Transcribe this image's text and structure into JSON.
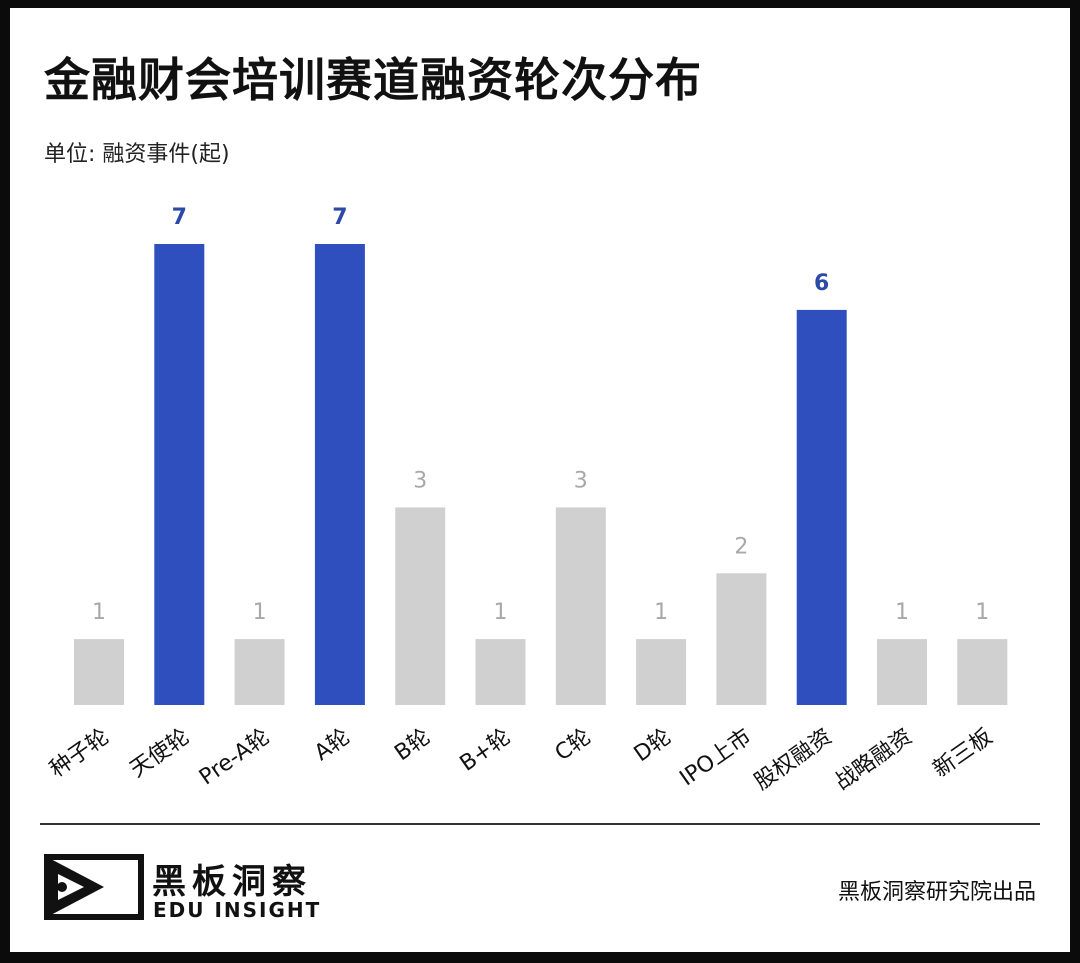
{
  "title": "金融财会培训赛道融资轮次分布",
  "unit_label": "单位: 融资事件(起)",
  "colors": {
    "highlight": "#2f4fbf",
    "normal": "#d0d0d0",
    "highlight_label": "#2b4aa8",
    "normal_label": "#a8a8a8"
  },
  "chart_data": {
    "type": "bar",
    "title": "金融财会培训赛道融资轮次分布",
    "ylabel": "融资事件(起)",
    "xlabel": "",
    "categories": [
      "种子轮",
      "天使轮",
      "Pre-A轮",
      "A轮",
      "B轮",
      "B+轮",
      "C轮",
      "D轮",
      "IPO上市",
      "股权融资",
      "战略融资",
      "新三板"
    ],
    "values": [
      1,
      7,
      1,
      7,
      3,
      1,
      3,
      1,
      2,
      6,
      1,
      1
    ],
    "highlighted": [
      false,
      true,
      false,
      true,
      false,
      false,
      false,
      false,
      false,
      true,
      false,
      false
    ],
    "ylim": [
      0,
      7
    ],
    "grid": false,
    "legend": "none"
  },
  "footer": {
    "logo_cn": "黑板洞察",
    "logo_en": "EDU INSIGHT",
    "logo_icon": "play-frame-icon",
    "credit": "黑板洞察研究院出品"
  }
}
